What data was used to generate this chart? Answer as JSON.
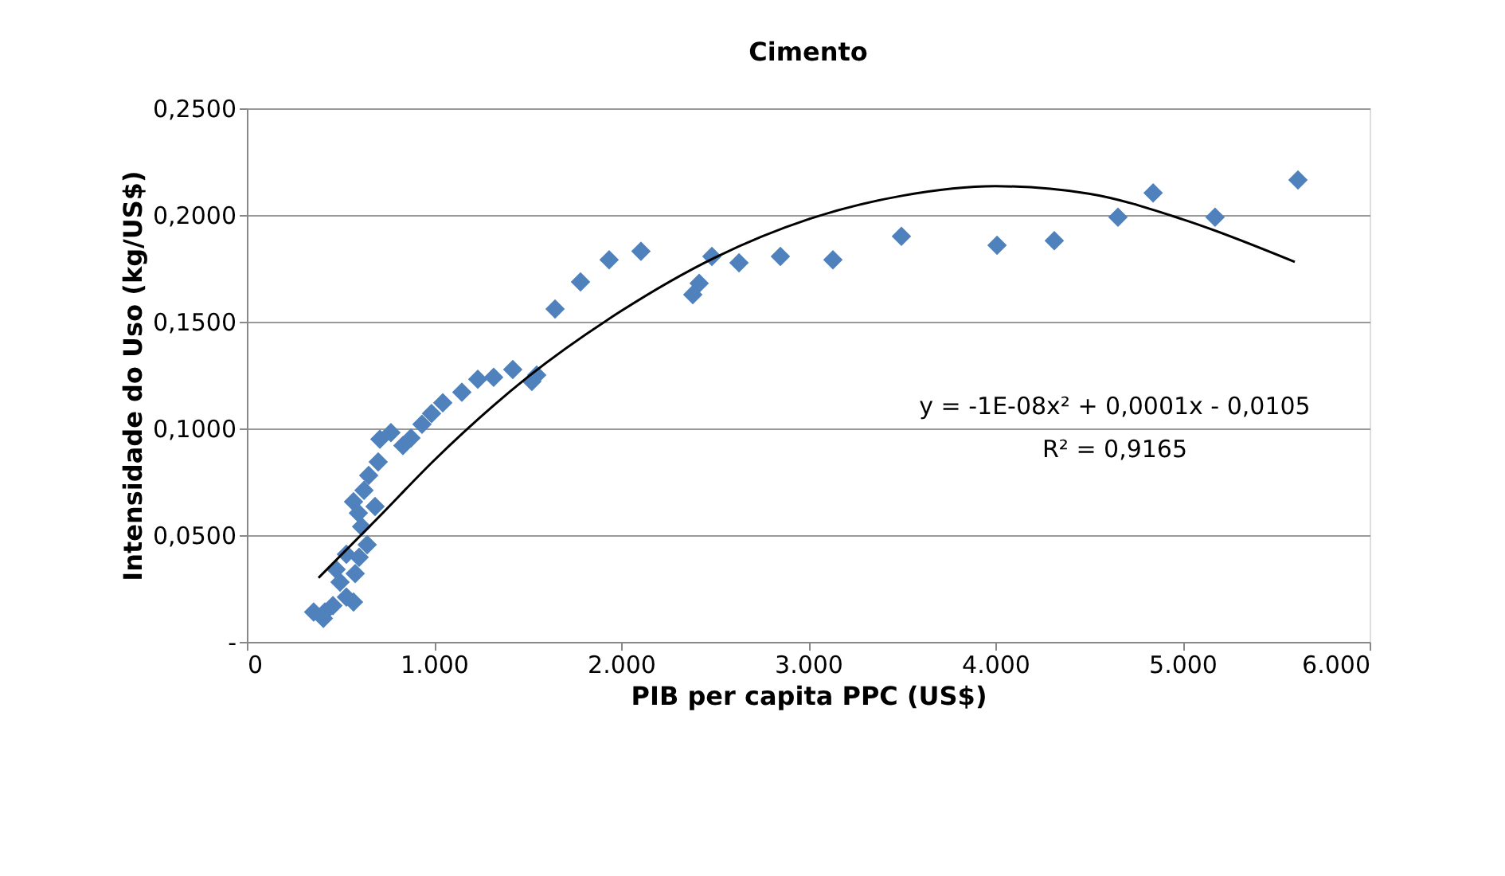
{
  "chart_data": {
    "type": "scatter",
    "title": "Cimento",
    "xlabel": "PIB per capita PPC (US$)",
    "ylabel": "Intensidade do Uso (kg/US$)",
    "xlim": [
      0,
      6000
    ],
    "xticks": [
      {
        "value": 0,
        "label": "0"
      },
      {
        "value": 1000,
        "label": "1.000"
      },
      {
        "value": 2000,
        "label": "2.000"
      },
      {
        "value": 3000,
        "label": "3.000"
      },
      {
        "value": 4000,
        "label": "4.000"
      },
      {
        "value": 5000,
        "label": "5.000"
      },
      {
        "value": 6000,
        "label": "6.000"
      }
    ],
    "ylim": [
      0,
      0.25
    ],
    "yticks": [
      {
        "value": 0,
        "label": "-"
      },
      {
        "value": 0.05,
        "label": "0,0500"
      },
      {
        "value": 0.1,
        "label": "0,1000"
      },
      {
        "value": 0.15,
        "label": "0,1500"
      },
      {
        "value": 0.2,
        "label": "0,2000"
      },
      {
        "value": 0.25,
        "label": "0,2500"
      }
    ],
    "grid": "y",
    "marker": "diamond",
    "annotations": [
      "y = -1E-08x² + 0,0001x - 0,0105",
      "R² = 0,9165"
    ],
    "series": [
      {
        "color": "#4f81bd",
        "x": [
          357,
          409,
          417,
          460,
          477,
          498,
          532,
          532,
          570,
          570,
          579,
          596,
          600,
          613,
          626,
          643,
          651,
          685,
          702,
          711,
          770,
          834,
          877,
          936,
          987,
          1047,
          1149,
          1234,
          1319,
          1421,
          1523,
          1549,
          1647,
          1783,
          1936,
          2106,
          2383,
          2417,
          2485,
          2630,
          2851,
          3132,
          3498,
          4009,
          4315,
          4655,
          4843,
          5174,
          5617
        ],
        "values": [
          0.014,
          0.011,
          0.014,
          0.017,
          0.034,
          0.028,
          0.021,
          0.041,
          0.0657,
          0.0187,
          0.032,
          0.0604,
          0.0396,
          0.054,
          0.071,
          0.0455,
          0.078,
          0.0634,
          0.0843,
          0.095,
          0.098,
          0.092,
          0.0955,
          0.102,
          0.107,
          0.112,
          0.117,
          0.123,
          0.124,
          0.1276,
          0.122,
          0.125,
          0.156,
          0.1687,
          0.179,
          0.183,
          0.1627,
          0.168,
          0.1806,
          0.1776,
          0.1806,
          0.179,
          0.19,
          0.1858,
          0.188,
          0.199,
          0.2104,
          0.199,
          0.2164
        ]
      },
      {
        "type": "line",
        "color": "#000000",
        "marker": "none",
        "line_style": "solid",
        "x": [
          383,
          700,
          1000,
          1500,
          2000,
          2500,
          3000,
          3500,
          4000,
          4500,
          5000,
          5600
        ],
        "values": [
          0.03,
          0.058,
          0.085,
          0.124,
          0.155,
          0.18,
          0.198,
          0.209,
          0.2135,
          0.21,
          0.198,
          0.178
        ]
      }
    ]
  }
}
